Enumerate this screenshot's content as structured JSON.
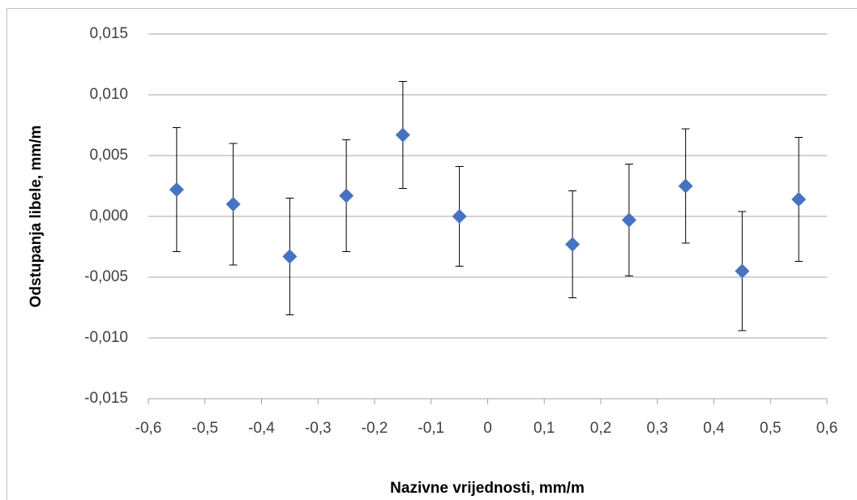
{
  "chart_data": {
    "type": "scatter",
    "x_label": "Nazivne vrijednosti, mm/m",
    "y_label": "Odstupanja libele, mm/m",
    "x": [
      -0.55,
      -0.45,
      -0.35,
      -0.25,
      -0.15,
      -0.05,
      0.15,
      0.25,
      0.35,
      0.45,
      0.55
    ],
    "values": [
      0.0022,
      0.001,
      -0.0033,
      0.0017,
      0.0067,
      0.0,
      -0.0023,
      -0.0003,
      0.0025,
      -0.0045,
      0.0014
    ],
    "errors": [
      0.0051,
      0.005,
      0.0048,
      0.0046,
      0.0044,
      0.0041,
      0.0044,
      0.0046,
      0.0047,
      0.0049,
      0.0051
    ],
    "color": "#4472c4",
    "xlim": [
      -0.6,
      0.6
    ],
    "xticks": [
      {
        "value": -0.6,
        "label": "-0,6"
      },
      {
        "value": -0.5,
        "label": "-0,5"
      },
      {
        "value": -0.4,
        "label": "-0,4"
      },
      {
        "value": -0.3,
        "label": "-0,3"
      },
      {
        "value": -0.2,
        "label": "-0,2"
      },
      {
        "value": -0.1,
        "label": "-0,1"
      },
      0,
      {
        "value": 0.1,
        "label": "0,1"
      },
      {
        "value": 0.2,
        "label": "0,2"
      },
      {
        "value": 0.3,
        "label": "0,3"
      },
      {
        "value": 0.4,
        "label": "0,4"
      },
      {
        "value": 0.5,
        "label": "0,5"
      },
      {
        "value": 0.6,
        "label": "0,6"
      }
    ],
    "ylim": [
      -0.015,
      0.015
    ],
    "yticks": [
      {
        "value": -0.015,
        "label": "-0,015"
      },
      {
        "value": -0.01,
        "label": "-0,010"
      },
      {
        "value": -0.005,
        "label": "-0,005"
      },
      {
        "value": 0,
        "label": "0,000"
      },
      {
        "value": 0.005,
        "label": "0,005"
      },
      {
        "value": 0.01,
        "label": "0,010"
      },
      {
        "value": 0.015,
        "label": "0,015"
      }
    ],
    "grid": true
  }
}
